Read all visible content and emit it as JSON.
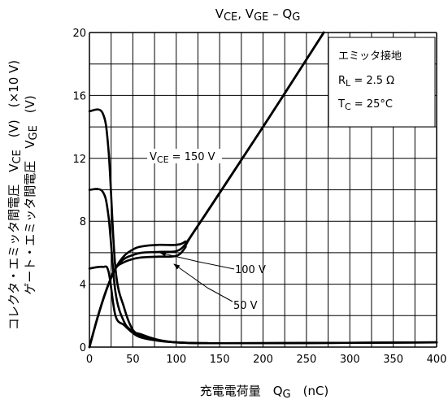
{
  "chart_data": {
    "type": "line",
    "title": {
      "main": "V",
      "sub1": "CE",
      "mid": ", V",
      "sub2": "GE",
      "end": " – Q",
      "sub3": "G"
    },
    "xlabel": {
      "main": "充電電荷量　Q",
      "sub": "G",
      "unit": "　(nC)"
    },
    "ylabel_line1": {
      "main": "コレクタ・エミッタ間電圧　V",
      "sub": "CE",
      "unit": "　(V)　(×10 V)"
    },
    "ylabel_line2": {
      "main": "ゲート・エミッタ間電圧　V",
      "sub": "GE",
      "unit": "　(V)"
    },
    "xlim": [
      0,
      400
    ],
    "ylim": [
      0,
      20
    ],
    "x_ticks": [
      "0",
      "50",
      "100",
      "150",
      "200",
      "250",
      "300",
      "350",
      "400"
    ],
    "y_ticks": [
      "0",
      "4",
      "8",
      "12",
      "16",
      "20"
    ],
    "grid": true,
    "legend_box": {
      "placement": "top-right",
      "line1": "エミッタ接地",
      "line2": {
        "main": "R",
        "sub": "L",
        "rest": " = 2.5 Ω"
      },
      "line3": {
        "main": "T",
        "sub": "C",
        "rest": " = 25°C"
      }
    },
    "annotations": {
      "vce150": {
        "main": "V",
        "sub": "CE",
        "rest": " = 150 V"
      },
      "v100": "100 V",
      "v50": "50 V"
    },
    "series": [
      {
        "id": "vce150",
        "x": [
          0,
          15,
          22,
          30,
          40,
          50,
          60,
          80,
          100,
          130,
          200,
          400
        ],
        "y": [
          15,
          14.9,
          12.5,
          5,
          2.5,
          1.1,
          0.8,
          0.45,
          0.3,
          0.25,
          0.25,
          0.3
        ]
      },
      {
        "id": "vce100",
        "x": [
          0,
          15,
          22,
          30,
          40,
          50,
          60,
          80,
          100,
          130,
          200,
          400
        ],
        "y": [
          10,
          9.9,
          8.3,
          3.5,
          1.6,
          1.0,
          0.7,
          0.45,
          0.3,
          0.25,
          0.25,
          0.3
        ]
      },
      {
        "id": "vce50",
        "x": [
          0,
          15,
          22,
          30,
          40,
          50,
          60,
          80,
          100,
          130,
          200,
          400
        ],
        "y": [
          5,
          5.1,
          4.8,
          2.0,
          1.4,
          0.9,
          0.6,
          0.4,
          0.3,
          0.25,
          0.25,
          0.3
        ]
      },
      {
        "id": "vge150",
        "x": [
          0,
          10,
          20,
          30,
          40,
          50,
          60,
          80,
          100,
          110,
          120,
          200,
          270
        ],
        "y": [
          0,
          2.0,
          3.7,
          5.0,
          5.8,
          6.2,
          6.4,
          6.5,
          6.5,
          6.7,
          7.3,
          14.0,
          20.0
        ]
      },
      {
        "id": "vge100",
        "x": [
          0,
          10,
          20,
          30,
          40,
          50,
          60,
          80,
          100,
          110,
          120,
          200,
          270
        ],
        "y": [
          0,
          2.0,
          3.7,
          5.0,
          5.6,
          5.85,
          6.0,
          6.05,
          6.1,
          6.5,
          7.3,
          14.0,
          20.0
        ]
      },
      {
        "id": "vge50",
        "x": [
          0,
          10,
          20,
          30,
          40,
          50,
          60,
          80,
          100,
          110,
          120,
          200,
          270
        ],
        "y": [
          0,
          2.0,
          3.7,
          5.0,
          5.4,
          5.6,
          5.7,
          5.75,
          5.8,
          6.3,
          7.3,
          14.0,
          20.0
        ]
      }
    ]
  }
}
